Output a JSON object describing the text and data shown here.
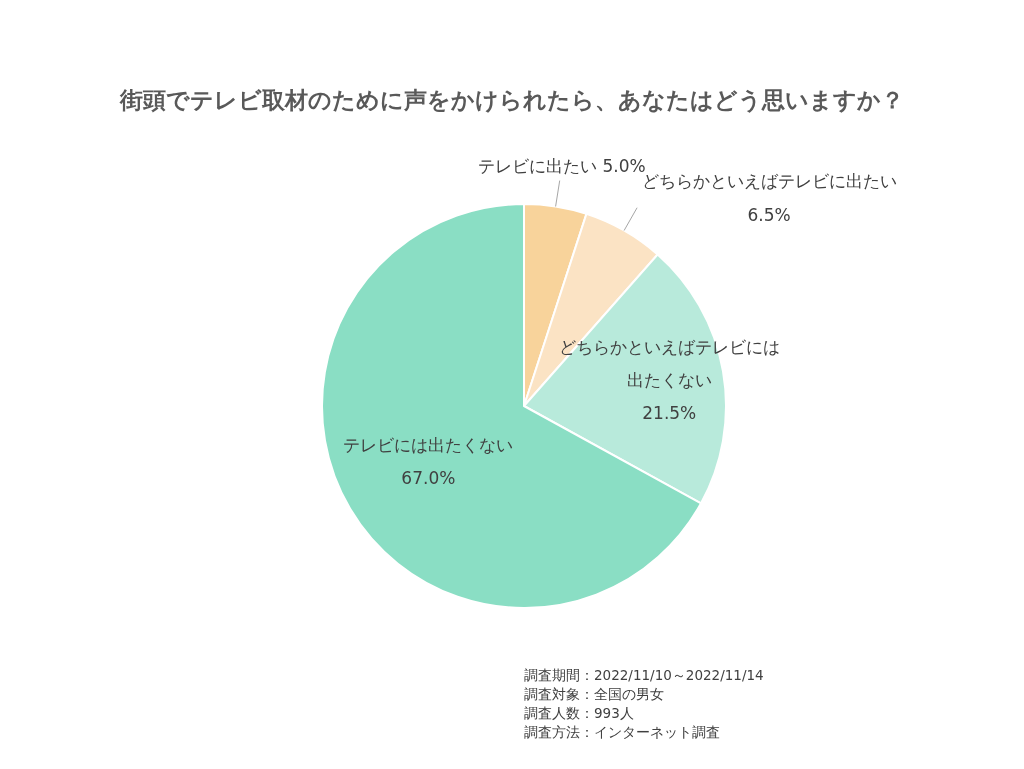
{
  "chart_data": {
    "type": "pie",
    "title": "街頭でテレビ取材のために声をかけられたら、あなたはどう思いますか？",
    "categories": [
      "テレビに出たい",
      "どちらかといえばテレビに出たい",
      "どちらかといえばテレビには出たくない",
      "テレビには出たくない"
    ],
    "values": [
      5.0,
      6.5,
      21.5,
      67.0
    ],
    "value_labels": [
      "5.0%",
      "6.5%",
      "21.5%",
      "67.0%"
    ],
    "colors": [
      "#f8d39b",
      "#fbe3c4",
      "#b8eadb",
      "#8adec4"
    ],
    "annotations": [
      "調査期間：2022/11/10～2022/11/14",
      "調査対象：全国の男女",
      "調査人数：993人",
      "調査方法：インターネット調査"
    ]
  }
}
